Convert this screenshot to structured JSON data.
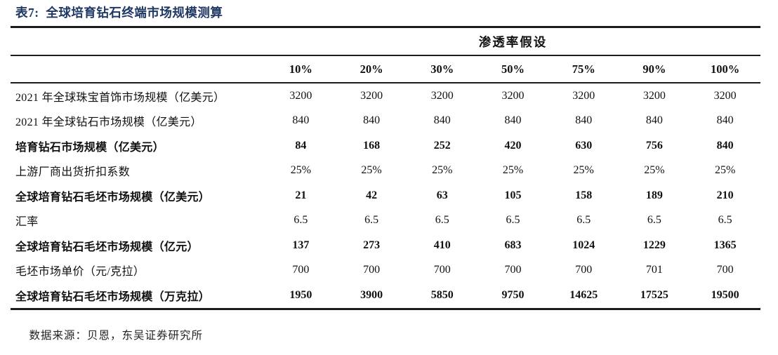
{
  "page": {
    "title": "表7:  全球培育钻石终端市场规模测算",
    "source_label": "数据来源：",
    "source_text": "贝恩，东吴证券研究所"
  },
  "table": {
    "group_header": "渗透率假设",
    "columns": [
      "10%",
      "20%",
      "30%",
      "50%",
      "75%",
      "90%",
      "100%"
    ],
    "rows": [
      {
        "label": "2021 年全球珠宝首饰市场规模（亿美元）",
        "bold": false,
        "values": [
          "3200",
          "3200",
          "3200",
          "3200",
          "3200",
          "3200",
          "3200"
        ]
      },
      {
        "label": "2021 年全球钻石市场规模（亿美元）",
        "bold": false,
        "values": [
          "840",
          "840",
          "840",
          "840",
          "840",
          "840",
          "840"
        ]
      },
      {
        "label": "培育钻石市场规模（亿美元）",
        "bold": true,
        "values": [
          "84",
          "168",
          "252",
          "420",
          "630",
          "756",
          "840"
        ]
      },
      {
        "label": "上游厂商出货折扣系数",
        "bold": false,
        "values": [
          "25%",
          "25%",
          "25%",
          "25%",
          "25%",
          "25%",
          "25%"
        ]
      },
      {
        "label": "全球培育钻石毛坯市场规模（亿美元）",
        "bold": true,
        "values": [
          "21",
          "42",
          "63",
          "105",
          "158",
          "189",
          "210"
        ]
      },
      {
        "label": "汇率",
        "bold": false,
        "values": [
          "6.5",
          "6.5",
          "6.5",
          "6.5",
          "6.5",
          "6.5",
          "6.5"
        ]
      },
      {
        "label": "全球培育钻石毛坯市场规模（亿元）",
        "bold": true,
        "values": [
          "137",
          "273",
          "410",
          "683",
          "1024",
          "1229",
          "1365"
        ]
      },
      {
        "label": "毛坯市场单价（元/克拉）",
        "bold": false,
        "values": [
          "700",
          "700",
          "700",
          "700",
          "700",
          "701",
          "700"
        ]
      },
      {
        "label": "全球培育钻石毛坯市场规模（万克拉）",
        "bold": true,
        "values": [
          "1950",
          "3900",
          "5850",
          "9750",
          "14625",
          "17525",
          "19500"
        ]
      }
    ]
  },
  "colors": {
    "title": "#1F3864",
    "rule": "#1B1B22",
    "text": "#111111"
  }
}
